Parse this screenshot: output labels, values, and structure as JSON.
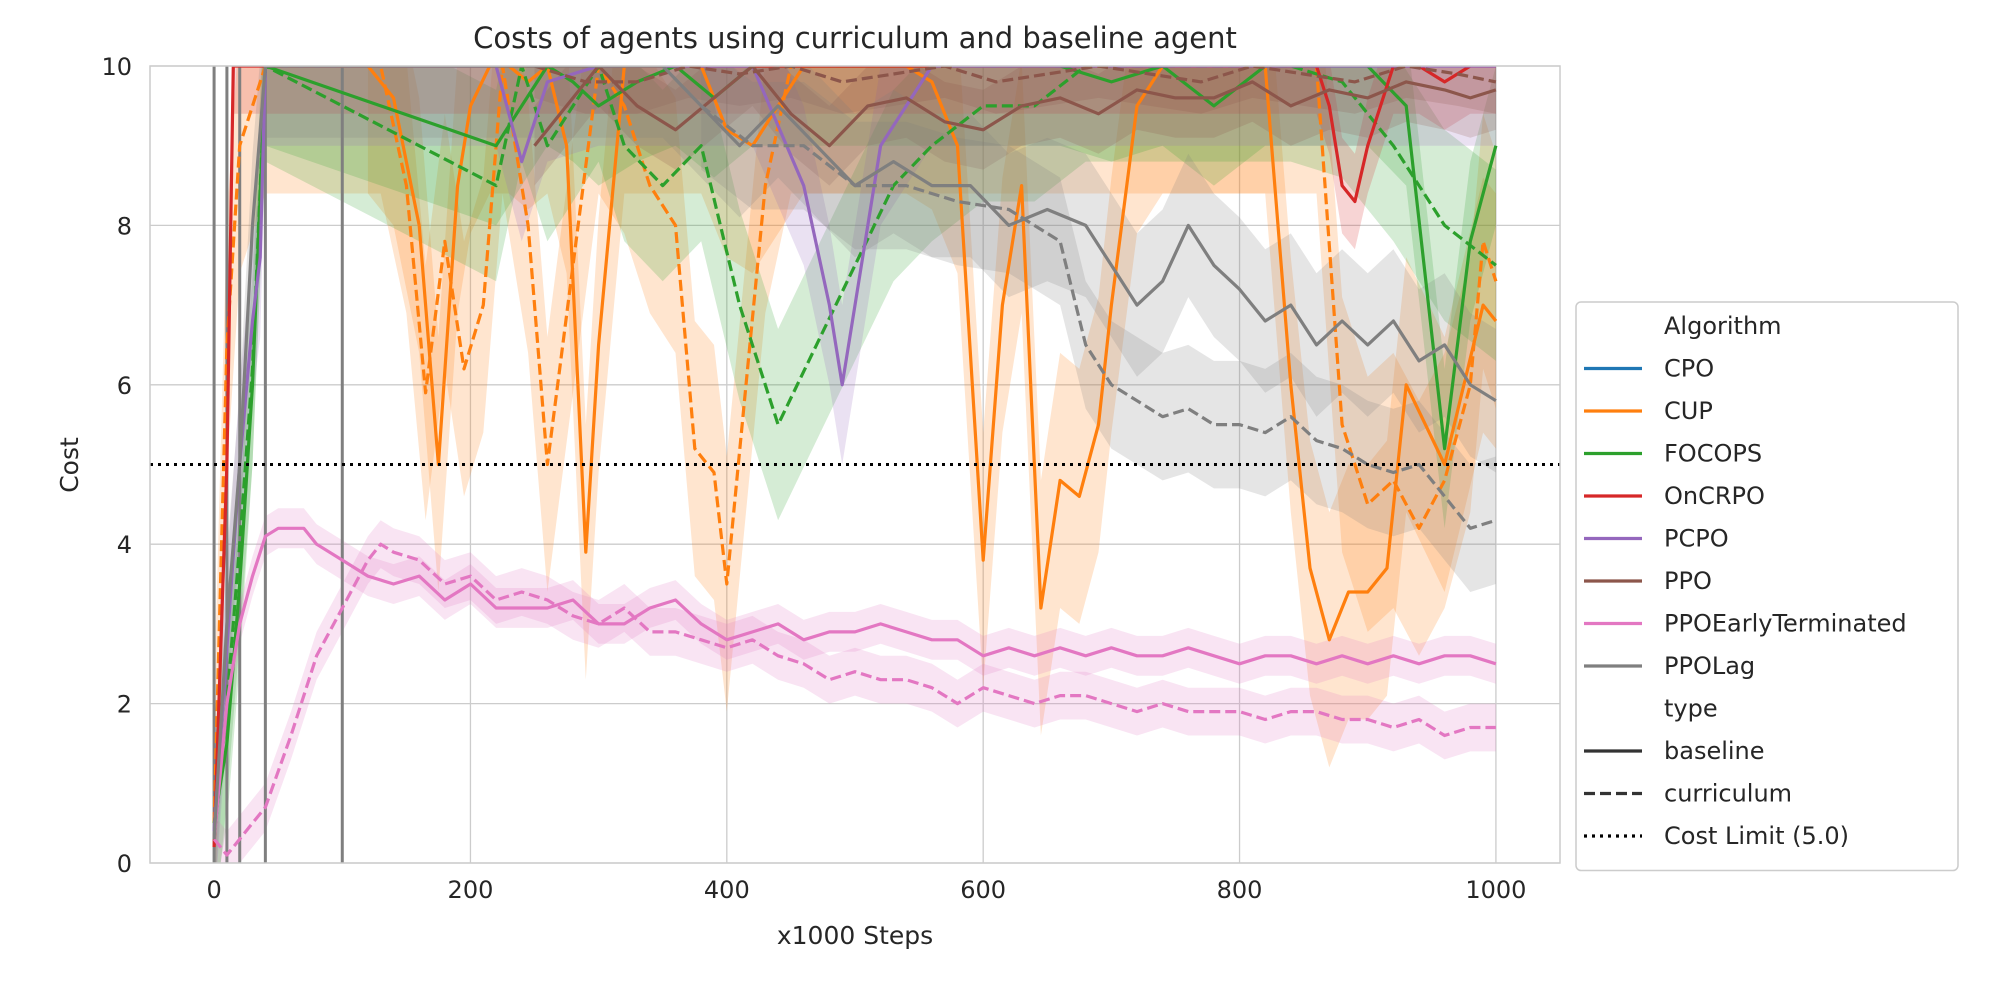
{
  "chart_data": {
    "type": "line",
    "title": "Costs of agents using curriculum and baseline agent",
    "xlabel": "x1000 Steps",
    "ylabel": "Cost",
    "xlim": [
      -50,
      1050
    ],
    "ylim": [
      0,
      10
    ],
    "x_ticks": [
      0,
      200,
      400,
      600,
      800,
      1000
    ],
    "y_ticks": [
      0,
      2,
      4,
      6,
      8,
      10
    ],
    "grid": true,
    "legend_position": "right, outside plot",
    "legend": {
      "algorithm_header": "Algorithm",
      "type_header": "type",
      "algorithms": [
        {
          "name": "CPO",
          "color": "#1f77b4"
        },
        {
          "name": "CUP",
          "color": "#ff7f0e"
        },
        {
          "name": "FOCOPS",
          "color": "#2ca02c"
        },
        {
          "name": "OnCRPO",
          "color": "#d62728"
        },
        {
          "name": "PCPO",
          "color": "#9467bd"
        },
        {
          "name": "PPO",
          "color": "#8c564b"
        },
        {
          "name": "PPOEarlyTerminated",
          "color": "#e377c2"
        },
        {
          "name": "PPOLag",
          "color": "#7f7f7f"
        }
      ],
      "types": [
        {
          "name": "baseline",
          "style": "solid"
        },
        {
          "name": "curriculum",
          "style": "dashed"
        },
        {
          "name": "Cost Limit (5.0)",
          "style": "dotted"
        }
      ]
    },
    "cost_limit": 5.0,
    "vertical_lines": [
      0,
      10,
      20,
      40,
      100
    ],
    "series": [
      {
        "name": "CUP",
        "type": "baseline",
        "color": "#ff7f0e",
        "x": [
          120,
          140,
          160,
          175,
          190,
          200,
          215,
          230,
          245,
          260,
          275,
          290,
          300,
          320,
          340,
          360,
          380,
          400,
          420,
          440,
          460,
          480,
          500,
          520,
          540,
          560,
          580,
          600,
          615,
          630,
          645,
          660,
          675,
          690,
          700,
          720,
          740,
          760,
          780,
          800,
          820,
          840,
          855,
          870,
          885,
          900,
          915,
          930,
          945,
          960,
          975,
          990,
          1000
        ],
        "values": [
          10,
          9.6,
          8.0,
          5.0,
          8.5,
          9.5,
          10,
          10,
          9.8,
          10,
          9.0,
          3.9,
          6.5,
          10,
          10,
          10,
          10,
          9.2,
          9.0,
          9.5,
          10,
          10,
          10,
          10,
          10,
          9.8,
          9.0,
          3.8,
          7.0,
          8.5,
          3.2,
          4.8,
          4.6,
          5.5,
          7.0,
          9.5,
          10,
          10,
          10,
          10,
          10,
          6.0,
          3.7,
          2.8,
          3.4,
          3.4,
          3.7,
          6.0,
          5.5,
          5.0,
          6.0,
          7.0,
          6.8
        ],
        "band": 1.6
      },
      {
        "name": "CUP",
        "type": "curriculum",
        "color": "#ff7f0e",
        "x": [
          0,
          10,
          20,
          30,
          40,
          130,
          150,
          165,
          180,
          195,
          210,
          225,
          245,
          260,
          280,
          300,
          320,
          340,
          360,
          375,
          390,
          400,
          415,
          430,
          450,
          470,
          500,
          530,
          560,
          590,
          620,
          650,
          680,
          710,
          740,
          770,
          800,
          830,
          860,
          880,
          900,
          920,
          940,
          960,
          980,
          990,
          1000
        ],
        "values": [
          0.5,
          6.5,
          9.0,
          9.5,
          10,
          10,
          8.5,
          5.9,
          7.8,
          6.2,
          7.0,
          10,
          8.0,
          5.0,
          7.5,
          10,
          9.5,
          8.5,
          8.0,
          5.2,
          4.9,
          3.5,
          6.0,
          8.5,
          10,
          10,
          10,
          10,
          10,
          10,
          10,
          10,
          10,
          10,
          10,
          10,
          10,
          10,
          10,
          5.5,
          4.5,
          4.8,
          4.2,
          4.8,
          6.0,
          7.8,
          7.3
        ],
        "band": 1.6
      },
      {
        "name": "FOCOPS",
        "type": "baseline",
        "color": "#2ca02c",
        "x": [
          0,
          10,
          20,
          30,
          40,
          220,
          240,
          260,
          280,
          300,
          330,
          360,
          390,
          420,
          450,
          480,
          510,
          540,
          570,
          600,
          630,
          660,
          700,
          740,
          780,
          820,
          860,
          900,
          930,
          960,
          980,
          1000
        ],
        "values": [
          0.5,
          1.5,
          3.5,
          6.0,
          10,
          9.0,
          9.5,
          10,
          9.8,
          9.5,
          9.8,
          10,
          9.6,
          10,
          10,
          10,
          10,
          10,
          10,
          10,
          10,
          10,
          9.8,
          10,
          9.5,
          10,
          10,
          10,
          9.5,
          5.2,
          7.8,
          9.0
        ],
        "band": 1.0
      },
      {
        "name": "FOCOPS",
        "type": "curriculum",
        "color": "#2ca02c",
        "x": [
          0,
          10,
          20,
          30,
          40,
          220,
          240,
          260,
          280,
          300,
          320,
          350,
          380,
          410,
          440,
          470,
          500,
          530,
          560,
          600,
          640,
          680,
          720,
          760,
          800,
          840,
          880,
          920,
          960,
          1000
        ],
        "values": [
          0.3,
          2.0,
          4.0,
          6.2,
          10,
          8.5,
          10,
          9.0,
          9.5,
          10,
          9.0,
          8.5,
          9.0,
          7.0,
          5.5,
          6.5,
          7.5,
          8.5,
          9.0,
          9.5,
          9.5,
          10,
          10,
          10,
          10,
          10,
          9.8,
          9.0,
          8.0,
          7.5
        ],
        "band": 1.2
      },
      {
        "name": "OnCRPO",
        "type": "baseline",
        "color": "#d62728",
        "x": [
          0,
          10,
          15,
          20,
          860,
          870,
          880,
          890,
          900,
          920,
          940,
          960,
          980,
          1000
        ],
        "values": [
          0.2,
          5.0,
          10,
          10,
          10,
          9.5,
          8.5,
          8.3,
          9.0,
          10,
          10,
          9.8,
          10,
          10
        ],
        "band": 0.6
      },
      {
        "name": "PCPO",
        "type": "baseline",
        "color": "#9467bd",
        "x": [
          0,
          20,
          30,
          36,
          40,
          220,
          240,
          260,
          300,
          340,
          380,
          420,
          460,
          480,
          490,
          500,
          520,
          560,
          600,
          640,
          680,
          720,
          760,
          800,
          840,
          880,
          920,
          960,
          1000
        ],
        "values": [
          0.4,
          5.0,
          6.8,
          7.6,
          10,
          10,
          8.8,
          9.8,
          10,
          10,
          10,
          10,
          8.5,
          7.0,
          6.0,
          7.0,
          9.0,
          10,
          10,
          10,
          10,
          10,
          10,
          10,
          10,
          10,
          10,
          10,
          10
        ],
        "band": 1.0
      },
      {
        "name": "PPO",
        "type": "baseline",
        "color": "#8c564b",
        "x": [
          250,
          280,
          300,
          330,
          360,
          390,
          420,
          450,
          480,
          510,
          540,
          570,
          600,
          630,
          660,
          690,
          720,
          750,
          780,
          810,
          840,
          870,
          900,
          930,
          960,
          980,
          1000
        ],
        "values": [
          9.0,
          9.6,
          10,
          9.5,
          9.2,
          9.6,
          10,
          9.4,
          9.0,
          9.5,
          9.6,
          9.3,
          9.2,
          9.5,
          9.6,
          9.4,
          9.7,
          9.6,
          9.6,
          9.8,
          9.5,
          9.7,
          9.6,
          9.8,
          9.7,
          9.6,
          9.7
        ],
        "band": 0.5
      },
      {
        "name": "PPO",
        "type": "curriculum",
        "color": "#8c564b",
        "x": [
          250,
          290,
          330,
          370,
          410,
          450,
          490,
          530,
          570,
          610,
          650,
          690,
          730,
          770,
          810,
          850,
          890,
          930,
          970,
          1000
        ],
        "values": [
          10,
          9.8,
          9.8,
          10,
          9.9,
          10,
          9.8,
          9.9,
          10,
          9.8,
          9.9,
          10,
          9.9,
          9.8,
          10,
          9.9,
          9.8,
          10,
          9.9,
          9.8
        ],
        "band": 0.4
      },
      {
        "name": "PPOEarlyTerminated",
        "type": "baseline",
        "color": "#e377c2",
        "x": [
          0,
          10,
          20,
          30,
          40,
          50,
          60,
          70,
          80,
          100,
          120,
          140,
          160,
          180,
          200,
          220,
          240,
          260,
          280,
          300,
          320,
          340,
          360,
          380,
          400,
          420,
          440,
          460,
          480,
          500,
          520,
          540,
          560,
          580,
          600,
          620,
          640,
          660,
          680,
          700,
          720,
          740,
          760,
          780,
          800,
          820,
          840,
          860,
          880,
          900,
          920,
          940,
          960,
          980,
          1000
        ],
        "values": [
          0.3,
          2.0,
          3.0,
          3.6,
          4.1,
          4.2,
          4.2,
          4.2,
          4.0,
          3.8,
          3.6,
          3.5,
          3.6,
          3.3,
          3.5,
          3.2,
          3.2,
          3.2,
          3.3,
          3.0,
          3.0,
          3.2,
          3.3,
          3.0,
          2.8,
          2.9,
          3.0,
          2.8,
          2.9,
          2.9,
          3.0,
          2.9,
          2.8,
          2.8,
          2.6,
          2.7,
          2.6,
          2.7,
          2.6,
          2.7,
          2.6,
          2.6,
          2.7,
          2.6,
          2.5,
          2.6,
          2.6,
          2.5,
          2.6,
          2.5,
          2.6,
          2.5,
          2.6,
          2.6,
          2.5
        ],
        "band": 0.25
      },
      {
        "name": "PPOEarlyTerminated",
        "type": "curriculum",
        "color": "#e377c2",
        "x": [
          0,
          10,
          20,
          30,
          40,
          60,
          80,
          100,
          120,
          130,
          140,
          160,
          180,
          200,
          220,
          240,
          260,
          280,
          300,
          320,
          340,
          360,
          380,
          400,
          420,
          440,
          460,
          480,
          500,
          520,
          540,
          560,
          580,
          600,
          620,
          640,
          660,
          680,
          700,
          720,
          740,
          760,
          780,
          800,
          820,
          840,
          860,
          880,
          900,
          920,
          940,
          960,
          980,
          1000
        ],
        "values": [
          0.3,
          0.1,
          0.3,
          0.5,
          0.7,
          1.6,
          2.6,
          3.2,
          3.8,
          4.0,
          3.9,
          3.8,
          3.5,
          3.6,
          3.3,
          3.4,
          3.3,
          3.1,
          3.0,
          3.2,
          2.9,
          2.9,
          2.8,
          2.7,
          2.8,
          2.6,
          2.5,
          2.3,
          2.4,
          2.3,
          2.3,
          2.2,
          2.0,
          2.2,
          2.1,
          2.0,
          2.1,
          2.1,
          2.0,
          1.9,
          2.0,
          1.9,
          1.9,
          1.9,
          1.8,
          1.9,
          1.9,
          1.8,
          1.8,
          1.7,
          1.8,
          1.6,
          1.7,
          1.7
        ],
        "band": 0.3
      },
      {
        "name": "PPOLag",
        "type": "baseline",
        "color": "#7f7f7f",
        "x": [
          0,
          10,
          20,
          30,
          40,
          350,
          380,
          410,
          440,
          470,
          500,
          530,
          560,
          590,
          620,
          650,
          680,
          700,
          720,
          740,
          760,
          780,
          800,
          820,
          840,
          860,
          880,
          900,
          920,
          940,
          960,
          980,
          1000
        ],
        "values": [
          0.3,
          3.0,
          5.0,
          8.0,
          10,
          10,
          9.5,
          9.0,
          9.5,
          9.0,
          8.5,
          8.8,
          8.5,
          8.5,
          8.0,
          8.2,
          8.0,
          7.5,
          7.0,
          7.3,
          8.0,
          7.5,
          7.2,
          6.8,
          7.0,
          6.5,
          6.8,
          6.5,
          6.8,
          6.3,
          6.5,
          6.0,
          5.8
        ],
        "band": 0.9
      },
      {
        "name": "PPOLag",
        "type": "curriculum",
        "color": "#7f7f7f",
        "x": [
          380,
          420,
          460,
          500,
          540,
          580,
          620,
          660,
          680,
          700,
          720,
          740,
          760,
          780,
          800,
          820,
          840,
          860,
          880,
          900,
          920,
          940,
          960,
          980,
          1000
        ],
        "values": [
          9.5,
          9.0,
          9.0,
          8.5,
          8.5,
          8.3,
          8.2,
          7.8,
          6.5,
          6.0,
          5.8,
          5.6,
          5.7,
          5.5,
          5.5,
          5.4,
          5.6,
          5.3,
          5.2,
          5.0,
          4.9,
          5.0,
          4.6,
          4.2,
          4.3
        ],
        "band": 0.8
      }
    ]
  }
}
